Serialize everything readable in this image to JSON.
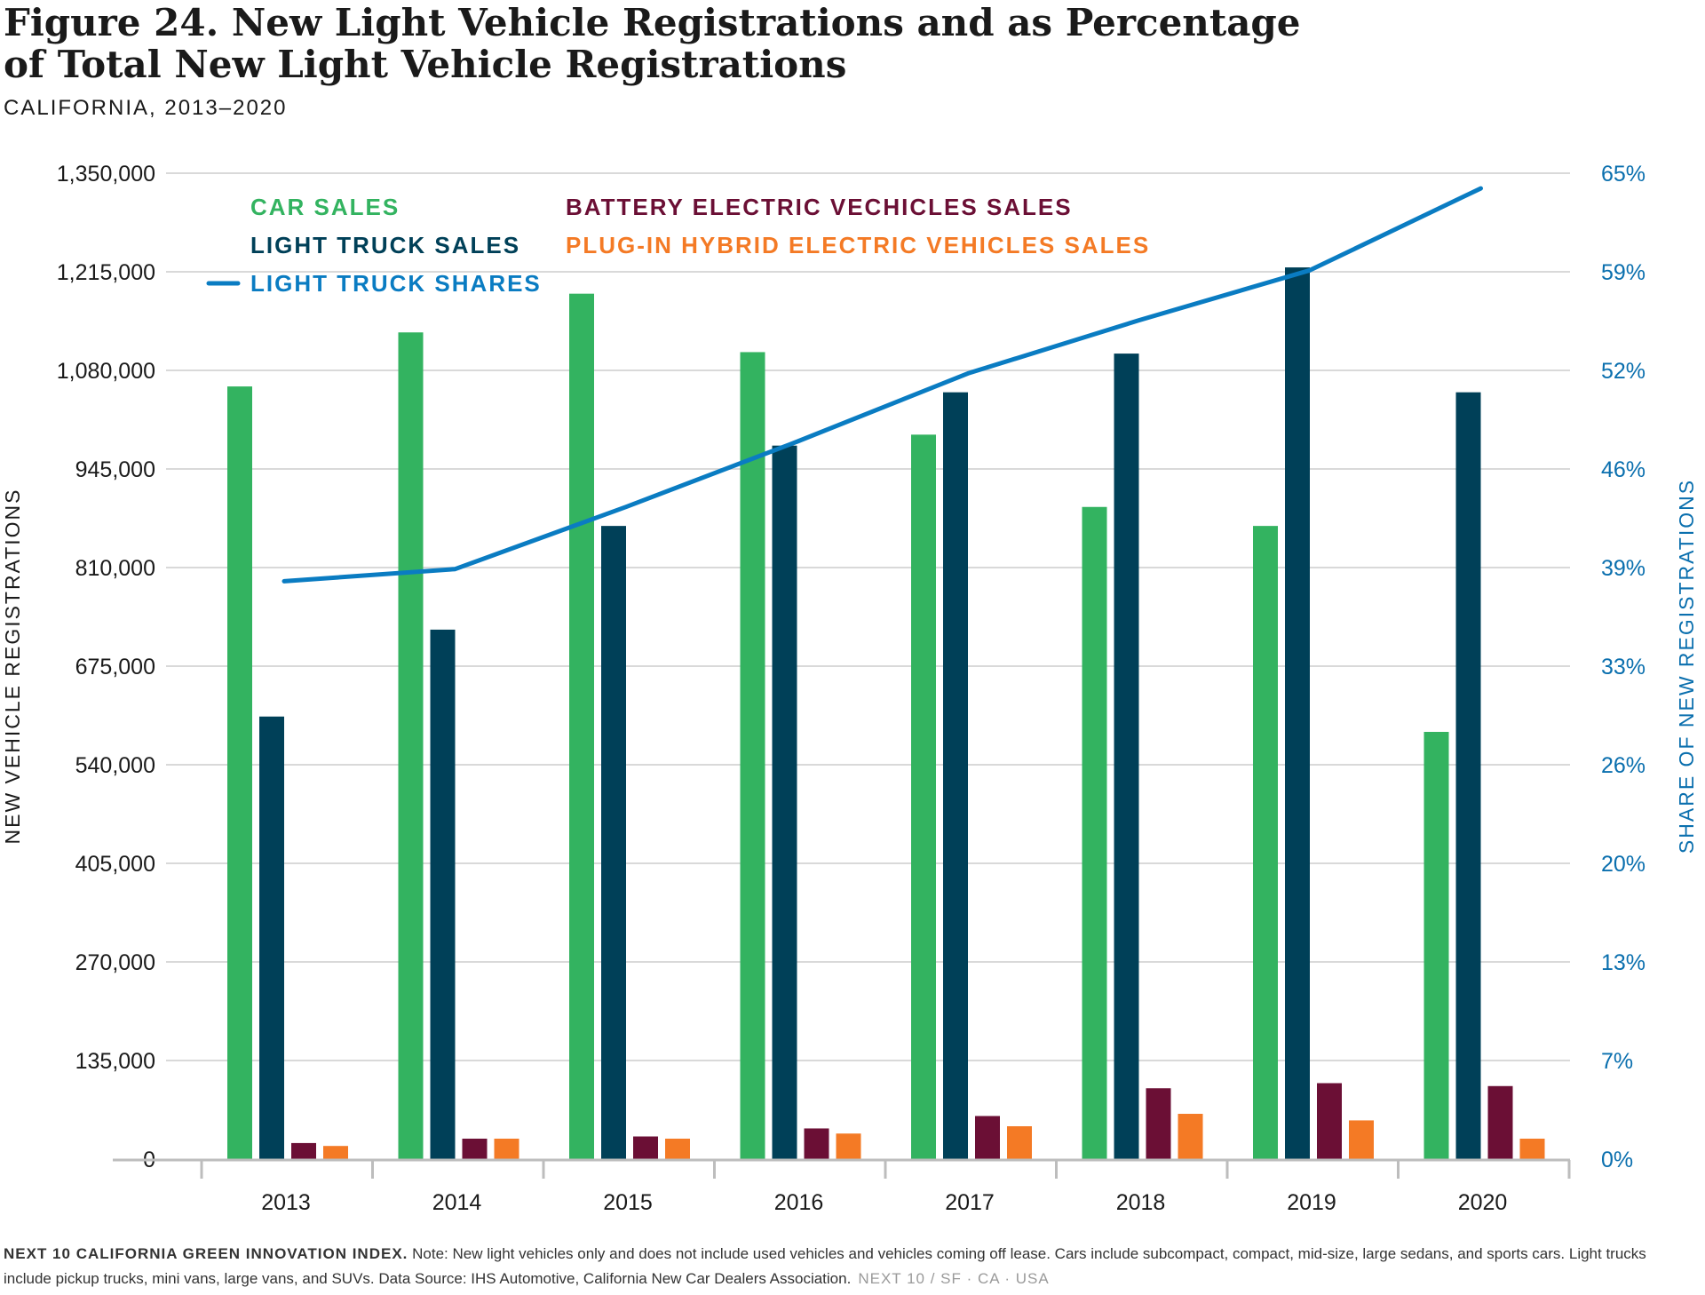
{
  "header": {
    "title": "Figure 24. New Light Vehicle Registrations and as Percentage of Total New Light Vehicle Registrations",
    "subtitle": "CALIFORNIA, 2013–2020"
  },
  "footnote": {
    "org": "NEXT 10 CALIFORNIA GREEN INNOVATION INDEX.",
    "note": " Note: New light vehicles only and does not include used vehicles and vehicles coming off lease. Cars include subcompact, compact, mid-size, large sedans, and sports cars. Light trucks include pickup trucks, mini vans, large vans, and SUVs. Data Source: IHS Automotive, California New Car Dealers Association.",
    "brand": "NEXT 10  /  SF · CA · USA"
  },
  "colors": {
    "car": "#33b360",
    "truck": "#004058",
    "bev": "#6b0f35",
    "phev": "#f47a25",
    "share": "#0a7cc2",
    "grid": "#d9d9d9",
    "axis_right": "#0a6fae"
  },
  "chart_data": {
    "type": "bar",
    "categories": [
      "2013",
      "2014",
      "2015",
      "2016",
      "2017",
      "2018",
      "2019",
      "2020"
    ],
    "series": [
      {
        "name": "CAR SALES",
        "values": [
          1058000,
          1132000,
          1185000,
          1105000,
          992000,
          893000,
          867000,
          585000
        ]
      },
      {
        "name": "LIGHT TRUCK SALES",
        "values": [
          606000,
          725000,
          867000,
          977000,
          1050000,
          1103000,
          1221000,
          1050000
        ]
      },
      {
        "name": "BATTERY ELECTRIC VECHICLES SALES",
        "values": [
          22000,
          28000,
          31000,
          42000,
          59000,
          97000,
          104000,
          100000
        ]
      },
      {
        "name": "PLUG-IN HYBRID ELECTRIC VEHICLES SALES",
        "values": [
          18000,
          28000,
          28000,
          35000,
          45000,
          62000,
          53000,
          28000
        ]
      }
    ],
    "line_series": {
      "name": "LIGHT TRUCK SHARES",
      "axis": "right",
      "values": [
        38.1,
        38.9,
        43,
        47.3,
        51.8,
        55.3,
        58.6,
        64
      ]
    },
    "xlabel": "",
    "ylabel": "NEW VEHICLE REGISTRATIONS",
    "ylabel_right": "SHARE OF NEW REGISTRATIONS",
    "ylim": [
      0,
      1350000
    ],
    "ylim_right": [
      0,
      65
    ],
    "yticks": [
      "0",
      "135,000",
      "270,000",
      "405,000",
      "540,000",
      "675,000",
      "810,000",
      "945,000",
      "1,080,000",
      "1,215,000",
      "1,350,000"
    ],
    "yticks_right": [
      "0%",
      "7%",
      "13%",
      "20%",
      "26%",
      "33%",
      "39%",
      "46%",
      "52%",
      "59%",
      "65%"
    ],
    "grid": true,
    "legend_position": "top-left"
  }
}
